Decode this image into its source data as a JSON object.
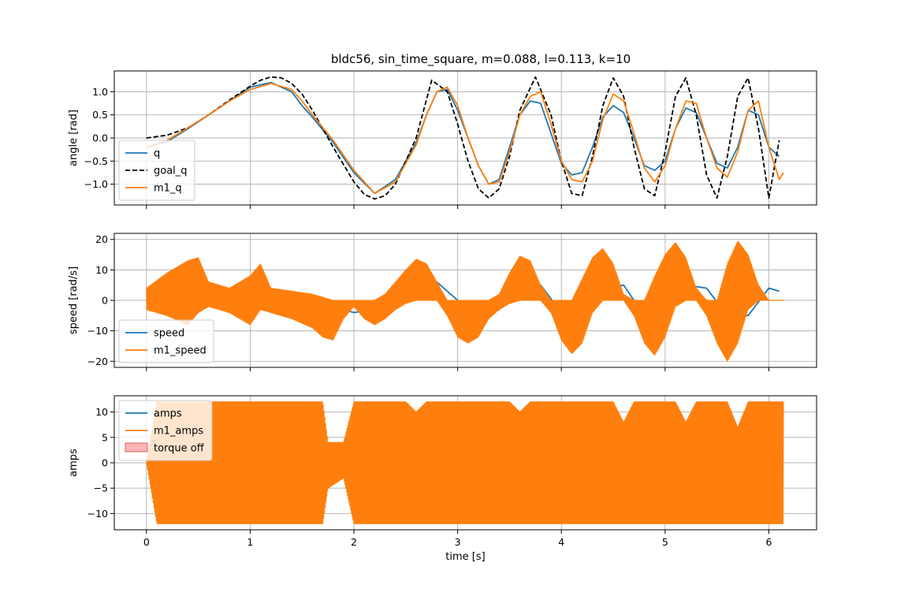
{
  "figure": {
    "title": "bldc56, sin_time_square, m=0.088, l=0.113, k=10",
    "colors": {
      "blue": "#1f77b4",
      "orange": "#ff7f0e",
      "black": "#000000",
      "torque_off": "#ff9c9c",
      "grid": "#b0b0b0"
    }
  },
  "chart_data": [
    {
      "type": "line",
      "name": "angle",
      "ylabel": "angle [rad]",
      "xlabel": "",
      "xlim": [
        -0.31,
        6.46
      ],
      "ylim": [
        -1.45,
        1.45
      ],
      "xticks": [
        0,
        1,
        2,
        3,
        4,
        5,
        6
      ],
      "yticks": [
        -1.0,
        -0.5,
        0.0,
        0.5,
        1.0
      ],
      "ytick_labels": [
        "−1.0",
        "−0.5",
        "0.0",
        "0.5",
        "1.0"
      ],
      "grid": true,
      "legend_position": "lower-left",
      "legend": [
        "q",
        "goal_q",
        "m1_q"
      ],
      "series": [
        {
          "name": "q",
          "color": "#1f77b4",
          "style": "solid",
          "x": [
            0,
            0.2,
            0.4,
            0.6,
            0.8,
            1.0,
            1.2,
            1.4,
            1.5,
            1.6,
            1.8,
            2.0,
            2.2,
            2.4,
            2.6,
            2.7,
            2.8,
            2.9,
            3.0,
            3.1,
            3.2,
            3.3,
            3.4,
            3.5,
            3.6,
            3.7,
            3.8,
            3.9,
            4.0,
            4.1,
            4.2,
            4.3,
            4.4,
            4.5,
            4.6,
            4.7,
            4.8,
            4.9,
            5.0,
            5.1,
            5.2,
            5.3,
            5.4,
            5.5,
            5.6,
            5.7,
            5.8,
            5.9,
            6.0,
            6.1
          ],
          "y": [
            -0.2,
            -0.08,
            0.2,
            0.5,
            0.8,
            1.1,
            1.2,
            1.0,
            0.7,
            0.45,
            -0.1,
            -0.75,
            -1.2,
            -0.9,
            -0.1,
            0.5,
            1.0,
            1.05,
            0.6,
            0.0,
            -0.6,
            -1.0,
            -0.9,
            -0.2,
            0.5,
            0.8,
            0.75,
            0.1,
            -0.55,
            -0.8,
            -0.75,
            -0.2,
            0.45,
            0.7,
            0.55,
            0.0,
            -0.6,
            -0.7,
            -0.5,
            0.2,
            0.65,
            0.55,
            0.0,
            -0.55,
            -0.65,
            -0.2,
            0.6,
            0.5,
            -0.2,
            -0.4
          ]
        },
        {
          "name": "goal_q",
          "color": "#000000",
          "style": "dashed",
          "x": [
            0,
            0.2,
            0.4,
            0.6,
            0.8,
            1.0,
            1.1,
            1.2,
            1.3,
            1.4,
            1.5,
            1.6,
            1.8,
            2.0,
            2.1,
            2.2,
            2.3,
            2.4,
            2.6,
            2.75,
            2.9,
            3.0,
            3.1,
            3.2,
            3.3,
            3.4,
            3.5,
            3.6,
            3.75,
            3.9,
            4.0,
            4.1,
            4.2,
            4.3,
            4.4,
            4.5,
            4.6,
            4.7,
            4.8,
            4.9,
            5.0,
            5.1,
            5.2,
            5.3,
            5.4,
            5.5,
            5.6,
            5.7,
            5.8,
            5.9,
            6.0,
            6.1
          ],
          "y": [
            0,
            0.06,
            0.22,
            0.5,
            0.82,
            1.12,
            1.25,
            1.32,
            1.3,
            1.18,
            0.95,
            0.6,
            -0.2,
            -0.95,
            -1.22,
            -1.32,
            -1.25,
            -1.0,
            0.0,
            1.25,
            1.0,
            0.3,
            -0.5,
            -1.1,
            -1.3,
            -1.1,
            -0.4,
            0.6,
            1.32,
            0.5,
            -0.5,
            -1.2,
            -1.25,
            -0.4,
            0.7,
            1.3,
            0.9,
            -0.2,
            -1.1,
            -1.25,
            -0.3,
            0.9,
            1.3,
            0.5,
            -0.8,
            -1.3,
            -0.4,
            0.9,
            1.3,
            0.2,
            -1.3,
            -0.05
          ]
        },
        {
          "name": "m1_q",
          "color": "#ff7f0e",
          "style": "solid",
          "x": [
            0,
            0.2,
            0.4,
            0.6,
            0.8,
            1.0,
            1.2,
            1.4,
            1.5,
            1.6,
            1.8,
            2.0,
            2.2,
            2.4,
            2.6,
            2.7,
            2.8,
            2.9,
            3.0,
            3.1,
            3.2,
            3.3,
            3.4,
            3.5,
            3.6,
            3.7,
            3.8,
            3.9,
            4.0,
            4.1,
            4.2,
            4.3,
            4.4,
            4.5,
            4.6,
            4.7,
            4.8,
            4.9,
            5.0,
            5.1,
            5.2,
            5.3,
            5.4,
            5.5,
            5.6,
            5.7,
            5.8,
            5.9,
            6.0,
            6.1,
            6.14
          ],
          "y": [
            -0.2,
            -0.05,
            0.22,
            0.5,
            0.8,
            1.05,
            1.18,
            1.05,
            0.8,
            0.5,
            -0.05,
            -0.7,
            -1.2,
            -0.95,
            -0.15,
            0.5,
            1.0,
            1.1,
            0.7,
            0.0,
            -0.6,
            -1.0,
            -0.95,
            -0.3,
            0.5,
            0.9,
            1.0,
            0.3,
            -0.5,
            -0.9,
            -0.95,
            -0.5,
            0.4,
            0.95,
            0.8,
            0.1,
            -0.65,
            -0.95,
            -0.6,
            0.2,
            0.8,
            0.75,
            0.0,
            -0.65,
            -0.85,
            -0.3,
            0.6,
            0.8,
            -0.2,
            -0.9,
            -0.75
          ]
        }
      ]
    },
    {
      "type": "line",
      "name": "speed",
      "ylabel": "speed [rad/s]",
      "xlabel": "",
      "xlim": [
        -0.31,
        6.46
      ],
      "ylim": [
        -22,
        22
      ],
      "xticks": [
        0,
        1,
        2,
        3,
        4,
        5,
        6
      ],
      "yticks": [
        -20,
        -10,
        0,
        10,
        20
      ],
      "ytick_labels": [
        "−20",
        "−10",
        "0",
        "10",
        "20"
      ],
      "grid": true,
      "legend_position": "lower-left",
      "legend": [
        "speed",
        "m1_speed"
      ],
      "series": [
        {
          "name": "speed",
          "color": "#1f77b4",
          "style": "solid",
          "x": [
            0,
            0.5,
            1.0,
            1.5,
            1.8,
            2.0,
            2.2,
            2.5,
            2.8,
            3.0,
            3.2,
            3.4,
            3.6,
            3.8,
            4.0,
            4.2,
            4.4,
            4.6,
            4.8,
            5.0,
            5.2,
            5.4,
            5.6,
            5.8,
            6.0,
            6.1
          ],
          "y": [
            1,
            2,
            2,
            0,
            -2,
            -4,
            -3,
            2,
            6,
            0,
            -5,
            -3,
            4,
            5,
            -4,
            -5,
            4,
            5,
            -5,
            -5,
            5,
            4,
            -5,
            -5,
            4,
            3
          ]
        },
        {
          "name": "m1_speed",
          "color": "#ff7f0e",
          "style": "envelope",
          "x": [
            0,
            0.2,
            0.4,
            0.5,
            0.6,
            0.8,
            1.0,
            1.1,
            1.2,
            1.4,
            1.6,
            1.7,
            1.8,
            1.9,
            2.0,
            2.1,
            2.2,
            2.3,
            2.4,
            2.5,
            2.6,
            2.7,
            2.8,
            2.9,
            3.0,
            3.1,
            3.2,
            3.3,
            3.4,
            3.5,
            3.6,
            3.7,
            3.8,
            3.9,
            4.0,
            4.1,
            4.2,
            4.3,
            4.4,
            4.5,
            4.6,
            4.7,
            4.8,
            4.9,
            5.0,
            5.1,
            5.2,
            5.3,
            5.4,
            5.5,
            5.6,
            5.7,
            5.8,
            5.9,
            6.0,
            6.14
          ],
          "upper": [
            4,
            9,
            13,
            14,
            6,
            4,
            8,
            12,
            4,
            3,
            2,
            1,
            0,
            0,
            0,
            0,
            0,
            2,
            6,
            10,
            13.5,
            12,
            6,
            0,
            0,
            0,
            0,
            0,
            2,
            9,
            14.5,
            13,
            5,
            0,
            0,
            0,
            7,
            14,
            17,
            12,
            2,
            0,
            0,
            8,
            15,
            19,
            14,
            4,
            0,
            0,
            12,
            19.5,
            15,
            5,
            0,
            0
          ],
          "lower": [
            -3,
            -5,
            -8,
            -4,
            -2,
            -4,
            -8,
            -3,
            -4,
            -6,
            -9,
            -12,
            -13,
            -6,
            -2,
            -6,
            -8,
            -6,
            -3,
            -1,
            0,
            0,
            0,
            -5,
            -12,
            -14,
            -12,
            -6,
            -3,
            -1,
            0,
            0,
            0,
            -4,
            -13,
            -17.5,
            -14,
            -4,
            0,
            0,
            0,
            -5,
            -14,
            -18,
            -12,
            -2,
            0,
            0,
            -5,
            -14,
            -20,
            -14,
            -3,
            0,
            0,
            0
          ]
        }
      ]
    },
    {
      "type": "line",
      "name": "amps",
      "ylabel": "amps",
      "xlabel": "time [s]",
      "xlim": [
        -0.31,
        6.46
      ],
      "ylim": [
        -13.2,
        13.2
      ],
      "xticks": [
        0,
        1,
        2,
        3,
        4,
        5,
        6
      ],
      "xtick_labels": [
        "0",
        "1",
        "2",
        "3",
        "4",
        "5",
        "6"
      ],
      "yticks": [
        -10,
        -5,
        0,
        5,
        10
      ],
      "ytick_labels": [
        "−10",
        "−5",
        "0",
        "5",
        "10"
      ],
      "grid": true,
      "legend_position": "upper-left",
      "legend": [
        "amps",
        "m1_amps",
        "torque off"
      ],
      "series": [
        {
          "name": "amps",
          "color": "#1f77b4",
          "style": "solid",
          "x": [
            0,
            6.14
          ],
          "y": [
            0,
            0
          ]
        },
        {
          "name": "m1_amps",
          "color": "#ff7f0e",
          "style": "envelope",
          "x": [
            0,
            0.1,
            0.5,
            0.9,
            1.0,
            1.5,
            1.7,
            1.75,
            1.9,
            2.0,
            2.1,
            2.2,
            2.3,
            2.4,
            2.5,
            2.6,
            2.7,
            2.8,
            2.9,
            3.0,
            3.1,
            3.2,
            3.3,
            3.4,
            3.5,
            3.6,
            3.7,
            3.8,
            3.9,
            4.0,
            4.1,
            4.2,
            4.3,
            4.4,
            4.5,
            4.6,
            4.7,
            4.8,
            4.9,
            5.0,
            5.1,
            5.2,
            5.3,
            5.4,
            5.5,
            5.6,
            5.7,
            5.8,
            5.9,
            6.0,
            6.14
          ],
          "upper": [
            0,
            12,
            12,
            12,
            12,
            12,
            12,
            4,
            4,
            12,
            12,
            12,
            12,
            12,
            12,
            10,
            12,
            12,
            12,
            12,
            12,
            12,
            12,
            12,
            12,
            10,
            12,
            12,
            12,
            12,
            12,
            12,
            12,
            12,
            12,
            8,
            12,
            12,
            12,
            12,
            12,
            8,
            12,
            12,
            12,
            12,
            7,
            12,
            12,
            12,
            12
          ],
          "lower": [
            0,
            -12,
            -12,
            -12,
            -12,
            -12,
            -12,
            -5,
            -3,
            -12,
            -12,
            -12,
            -12,
            -12,
            -12,
            -12,
            -12,
            -12,
            -12,
            -12,
            -12,
            -12,
            -12,
            -12,
            -12,
            -12,
            -12,
            -12,
            -12,
            -12,
            -12,
            -12,
            -12,
            -12,
            -12,
            -12,
            -12,
            -12,
            -12,
            -12,
            -12,
            -12,
            -12,
            -12,
            -12,
            -12,
            -12,
            -12,
            -12,
            -12,
            -12
          ]
        }
      ]
    }
  ]
}
